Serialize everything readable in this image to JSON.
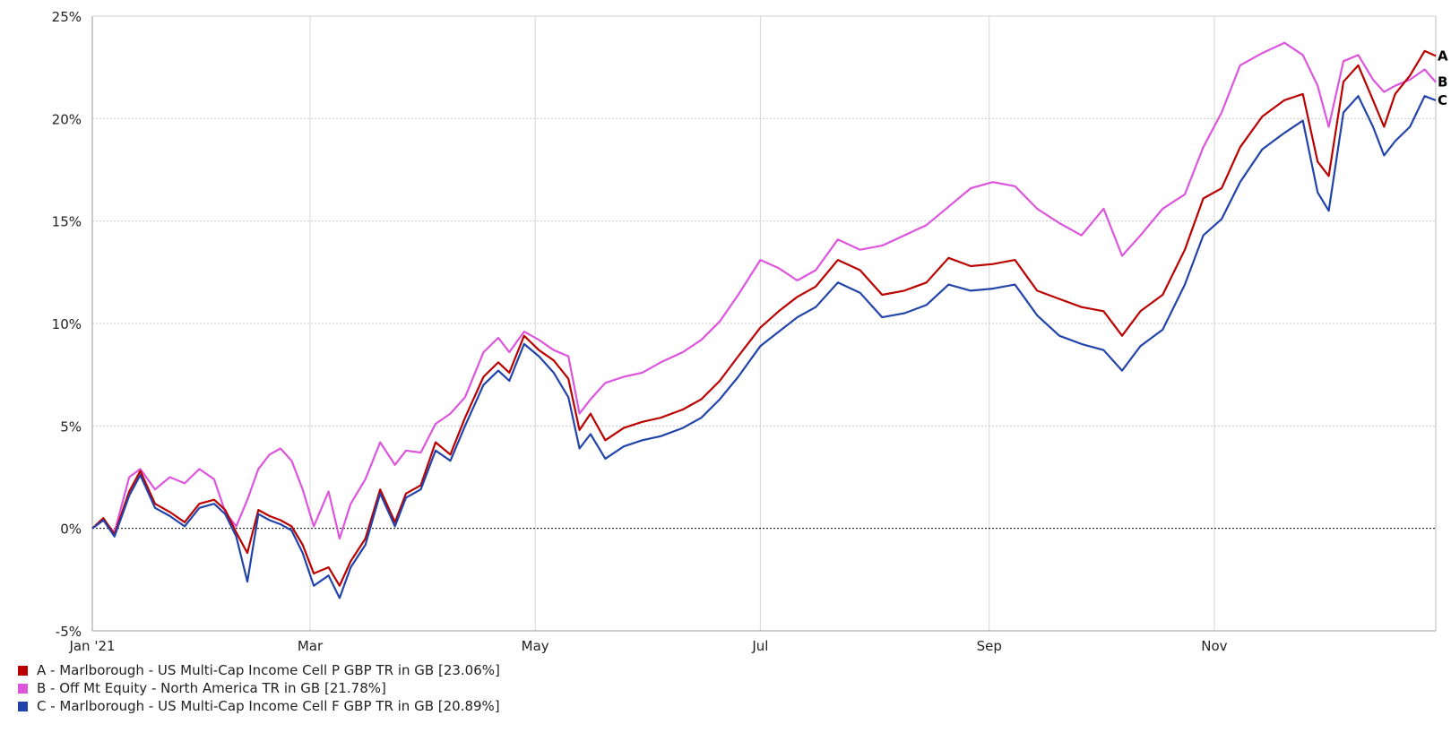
{
  "chart_data": {
    "type": "line",
    "yticks": [
      "25%",
      "20%",
      "15%",
      "10%",
      "5%",
      "0%",
      "-5%"
    ],
    "ytick_values": [
      25,
      20,
      15,
      10,
      5,
      0,
      -5
    ],
    "ylim": [
      -5,
      25
    ],
    "xlim": [
      "2021-01-01",
      "2021-12-31"
    ],
    "xticks": [
      {
        "label": "Jan '21",
        "date": "2021-01-01"
      },
      {
        "label": "Mar",
        "date": "2021-03-01"
      },
      {
        "label": "May",
        "date": "2021-05-01"
      },
      {
        "label": "Jul",
        "date": "2021-07-01"
      },
      {
        "label": "Sep",
        "date": "2021-09-01"
      },
      {
        "label": "Nov",
        "date": "2021-11-01"
      }
    ],
    "grid": true,
    "legend_position": "bottom-left",
    "series": [
      {
        "id": "A",
        "color": "#bb0000",
        "legend": "A - Marlborough - US Multi-Cap Income Cell P GBP TR in GB [23.06%]",
        "points": [
          [
            "2021-01-01",
            0
          ],
          [
            "2021-01-04",
            0.5
          ],
          [
            "2021-01-07",
            -0.3
          ],
          [
            "2021-01-11",
            1.8
          ],
          [
            "2021-01-14",
            2.8
          ],
          [
            "2021-01-18",
            1.2
          ],
          [
            "2021-01-22",
            0.8
          ],
          [
            "2021-01-26",
            0.3
          ],
          [
            "2021-01-30",
            1.2
          ],
          [
            "2021-02-03",
            1.4
          ],
          [
            "2021-02-06",
            0.9
          ],
          [
            "2021-02-09",
            -0.2
          ],
          [
            "2021-02-12",
            -1.2
          ],
          [
            "2021-02-15",
            0.9
          ],
          [
            "2021-02-18",
            0.6
          ],
          [
            "2021-02-21",
            0.4
          ],
          [
            "2021-02-24",
            0.1
          ],
          [
            "2021-02-27",
            -0.8
          ],
          [
            "2021-03-02",
            -2.2
          ],
          [
            "2021-03-06",
            -1.9
          ],
          [
            "2021-03-09",
            -2.8
          ],
          [
            "2021-03-12",
            -1.6
          ],
          [
            "2021-03-16",
            -0.5
          ],
          [
            "2021-03-20",
            1.9
          ],
          [
            "2021-03-24",
            0.3
          ],
          [
            "2021-03-27",
            1.7
          ],
          [
            "2021-03-31",
            2.1
          ],
          [
            "2021-04-04",
            4.2
          ],
          [
            "2021-04-08",
            3.6
          ],
          [
            "2021-04-12",
            5.4
          ],
          [
            "2021-04-17",
            7.4
          ],
          [
            "2021-04-21",
            8.1
          ],
          [
            "2021-04-24",
            7.6
          ],
          [
            "2021-04-28",
            9.4
          ],
          [
            "2021-05-02",
            8.7
          ],
          [
            "2021-05-06",
            8.2
          ],
          [
            "2021-05-10",
            7.3
          ],
          [
            "2021-05-13",
            4.8
          ],
          [
            "2021-05-16",
            5.6
          ],
          [
            "2021-05-20",
            4.3
          ],
          [
            "2021-05-25",
            4.9
          ],
          [
            "2021-05-30",
            5.2
          ],
          [
            "2021-06-04",
            5.4
          ],
          [
            "2021-06-10",
            5.8
          ],
          [
            "2021-06-15",
            6.3
          ],
          [
            "2021-06-20",
            7.2
          ],
          [
            "2021-06-25",
            8.4
          ],
          [
            "2021-07-01",
            9.8
          ],
          [
            "2021-07-06",
            10.6
          ],
          [
            "2021-07-11",
            11.3
          ],
          [
            "2021-07-16",
            11.8
          ],
          [
            "2021-07-22",
            13.1
          ],
          [
            "2021-07-28",
            12.6
          ],
          [
            "2021-08-03",
            11.4
          ],
          [
            "2021-08-09",
            11.6
          ],
          [
            "2021-08-15",
            12.0
          ],
          [
            "2021-08-21",
            13.2
          ],
          [
            "2021-08-27",
            12.8
          ],
          [
            "2021-09-02",
            12.9
          ],
          [
            "2021-09-08",
            13.1
          ],
          [
            "2021-09-14",
            11.6
          ],
          [
            "2021-09-20",
            11.2
          ],
          [
            "2021-09-26",
            10.8
          ],
          [
            "2021-10-02",
            10.6
          ],
          [
            "2021-10-07",
            9.4
          ],
          [
            "2021-10-12",
            10.6
          ],
          [
            "2021-10-18",
            11.4
          ],
          [
            "2021-10-24",
            13.6
          ],
          [
            "2021-10-29",
            16.1
          ],
          [
            "2021-11-03",
            16.6
          ],
          [
            "2021-11-08",
            18.6
          ],
          [
            "2021-11-14",
            20.1
          ],
          [
            "2021-11-20",
            20.9
          ],
          [
            "2021-11-25",
            21.2
          ],
          [
            "2021-11-29",
            17.9
          ],
          [
            "2021-12-02",
            17.2
          ],
          [
            "2021-12-06",
            21.8
          ],
          [
            "2021-12-10",
            22.6
          ],
          [
            "2021-12-14",
            20.9
          ],
          [
            "2021-12-17",
            19.6
          ],
          [
            "2021-12-20",
            21.2
          ],
          [
            "2021-12-24",
            22.1
          ],
          [
            "2021-12-28",
            23.3
          ],
          [
            "2021-12-31",
            23.06
          ]
        ]
      },
      {
        "id": "B",
        "color": "#dd55dd",
        "legend": "B - Off Mt Equity - North America TR in GB [21.78%]",
        "points": [
          [
            "2021-01-01",
            0
          ],
          [
            "2021-01-04",
            0.4
          ],
          [
            "2021-01-07",
            -0.2
          ],
          [
            "2021-01-11",
            2.5
          ],
          [
            "2021-01-14",
            2.9
          ],
          [
            "2021-01-18",
            1.9
          ],
          [
            "2021-01-22",
            2.5
          ],
          [
            "2021-01-26",
            2.2
          ],
          [
            "2021-01-30",
            2.9
          ],
          [
            "2021-02-03",
            2.4
          ],
          [
            "2021-02-06",
            0.8
          ],
          [
            "2021-02-09",
            0.1
          ],
          [
            "2021-02-12",
            1.4
          ],
          [
            "2021-02-15",
            2.9
          ],
          [
            "2021-02-18",
            3.6
          ],
          [
            "2021-02-21",
            3.9
          ],
          [
            "2021-02-24",
            3.3
          ],
          [
            "2021-02-27",
            1.9
          ],
          [
            "2021-03-02",
            0.1
          ],
          [
            "2021-03-06",
            1.8
          ],
          [
            "2021-03-09",
            -0.5
          ],
          [
            "2021-03-12",
            1.2
          ],
          [
            "2021-03-16",
            2.4
          ],
          [
            "2021-03-20",
            4.2
          ],
          [
            "2021-03-24",
            3.1
          ],
          [
            "2021-03-27",
            3.8
          ],
          [
            "2021-03-31",
            3.7
          ],
          [
            "2021-04-04",
            5.1
          ],
          [
            "2021-04-08",
            5.6
          ],
          [
            "2021-04-12",
            6.4
          ],
          [
            "2021-04-17",
            8.6
          ],
          [
            "2021-04-21",
            9.3
          ],
          [
            "2021-04-24",
            8.6
          ],
          [
            "2021-04-28",
            9.6
          ],
          [
            "2021-05-02",
            9.2
          ],
          [
            "2021-05-06",
            8.7
          ],
          [
            "2021-05-10",
            8.4
          ],
          [
            "2021-05-13",
            5.6
          ],
          [
            "2021-05-16",
            6.3
          ],
          [
            "2021-05-20",
            7.1
          ],
          [
            "2021-05-25",
            7.4
          ],
          [
            "2021-05-30",
            7.6
          ],
          [
            "2021-06-04",
            8.1
          ],
          [
            "2021-06-10",
            8.6
          ],
          [
            "2021-06-15",
            9.2
          ],
          [
            "2021-06-20",
            10.1
          ],
          [
            "2021-06-25",
            11.4
          ],
          [
            "2021-07-01",
            13.1
          ],
          [
            "2021-07-06",
            12.7
          ],
          [
            "2021-07-11",
            12.1
          ],
          [
            "2021-07-16",
            12.6
          ],
          [
            "2021-07-22",
            14.1
          ],
          [
            "2021-07-28",
            13.6
          ],
          [
            "2021-08-03",
            13.8
          ],
          [
            "2021-08-09",
            14.3
          ],
          [
            "2021-08-15",
            14.8
          ],
          [
            "2021-08-21",
            15.7
          ],
          [
            "2021-08-27",
            16.6
          ],
          [
            "2021-09-02",
            16.9
          ],
          [
            "2021-09-08",
            16.7
          ],
          [
            "2021-09-14",
            15.6
          ],
          [
            "2021-09-20",
            14.9
          ],
          [
            "2021-09-26",
            14.3
          ],
          [
            "2021-10-02",
            15.6
          ],
          [
            "2021-10-07",
            13.3
          ],
          [
            "2021-10-12",
            14.3
          ],
          [
            "2021-10-18",
            15.6
          ],
          [
            "2021-10-24",
            16.3
          ],
          [
            "2021-10-29",
            18.6
          ],
          [
            "2021-11-03",
            20.3
          ],
          [
            "2021-11-08",
            22.6
          ],
          [
            "2021-11-14",
            23.2
          ],
          [
            "2021-11-20",
            23.7
          ],
          [
            "2021-11-25",
            23.1
          ],
          [
            "2021-11-29",
            21.6
          ],
          [
            "2021-12-02",
            19.6
          ],
          [
            "2021-12-06",
            22.8
          ],
          [
            "2021-12-10",
            23.1
          ],
          [
            "2021-12-14",
            21.9
          ],
          [
            "2021-12-17",
            21.3
          ],
          [
            "2021-12-20",
            21.6
          ],
          [
            "2021-12-24",
            21.9
          ],
          [
            "2021-12-28",
            22.4
          ],
          [
            "2021-12-31",
            21.78
          ]
        ]
      },
      {
        "id": "C",
        "color": "#2244aa",
        "legend": "C - Marlborough - US Multi-Cap Income Cell F GBP TR in GB [20.89%]",
        "points": [
          [
            "2021-01-01",
            0
          ],
          [
            "2021-01-04",
            0.4
          ],
          [
            "2021-01-07",
            -0.4
          ],
          [
            "2021-01-11",
            1.6
          ],
          [
            "2021-01-14",
            2.6
          ],
          [
            "2021-01-18",
            1.0
          ],
          [
            "2021-01-22",
            0.6
          ],
          [
            "2021-01-26",
            0.1
          ],
          [
            "2021-01-30",
            1.0
          ],
          [
            "2021-02-03",
            1.2
          ],
          [
            "2021-02-06",
            0.7
          ],
          [
            "2021-02-09",
            -0.4
          ],
          [
            "2021-02-12",
            -2.6
          ],
          [
            "2021-02-15",
            0.7
          ],
          [
            "2021-02-18",
            0.4
          ],
          [
            "2021-02-21",
            0.2
          ],
          [
            "2021-02-24",
            -0.1
          ],
          [
            "2021-02-27",
            -1.2
          ],
          [
            "2021-03-02",
            -2.8
          ],
          [
            "2021-03-06",
            -2.3
          ],
          [
            "2021-03-09",
            -3.4
          ],
          [
            "2021-03-12",
            -1.9
          ],
          [
            "2021-03-16",
            -0.8
          ],
          [
            "2021-03-20",
            1.7
          ],
          [
            "2021-03-24",
            0.1
          ],
          [
            "2021-03-27",
            1.5
          ],
          [
            "2021-03-31",
            1.9
          ],
          [
            "2021-04-04",
            3.8
          ],
          [
            "2021-04-08",
            3.3
          ],
          [
            "2021-04-12",
            5.0
          ],
          [
            "2021-04-17",
            7.0
          ],
          [
            "2021-04-21",
            7.7
          ],
          [
            "2021-04-24",
            7.2
          ],
          [
            "2021-04-28",
            9.0
          ],
          [
            "2021-05-02",
            8.4
          ],
          [
            "2021-05-06",
            7.6
          ],
          [
            "2021-05-10",
            6.4
          ],
          [
            "2021-05-13",
            3.9
          ],
          [
            "2021-05-16",
            4.6
          ],
          [
            "2021-05-20",
            3.4
          ],
          [
            "2021-05-25",
            4.0
          ],
          [
            "2021-05-30",
            4.3
          ],
          [
            "2021-06-04",
            4.5
          ],
          [
            "2021-06-10",
            4.9
          ],
          [
            "2021-06-15",
            5.4
          ],
          [
            "2021-06-20",
            6.3
          ],
          [
            "2021-06-25",
            7.4
          ],
          [
            "2021-07-01",
            8.9
          ],
          [
            "2021-07-06",
            9.6
          ],
          [
            "2021-07-11",
            10.3
          ],
          [
            "2021-07-16",
            10.8
          ],
          [
            "2021-07-22",
            12.0
          ],
          [
            "2021-07-28",
            11.5
          ],
          [
            "2021-08-03",
            10.3
          ],
          [
            "2021-08-09",
            10.5
          ],
          [
            "2021-08-15",
            10.9
          ],
          [
            "2021-08-21",
            11.9
          ],
          [
            "2021-08-27",
            11.6
          ],
          [
            "2021-09-02",
            11.7
          ],
          [
            "2021-09-08",
            11.9
          ],
          [
            "2021-09-14",
            10.4
          ],
          [
            "2021-09-20",
            9.4
          ],
          [
            "2021-09-26",
            9.0
          ],
          [
            "2021-10-02",
            8.7
          ],
          [
            "2021-10-07",
            7.7
          ],
          [
            "2021-10-12",
            8.9
          ],
          [
            "2021-10-18",
            9.7
          ],
          [
            "2021-10-24",
            11.9
          ],
          [
            "2021-10-29",
            14.3
          ],
          [
            "2021-11-03",
            15.1
          ],
          [
            "2021-11-08",
            16.9
          ],
          [
            "2021-11-14",
            18.5
          ],
          [
            "2021-11-20",
            19.3
          ],
          [
            "2021-11-25",
            19.9
          ],
          [
            "2021-11-29",
            16.4
          ],
          [
            "2021-12-02",
            15.5
          ],
          [
            "2021-12-06",
            20.3
          ],
          [
            "2021-12-10",
            21.1
          ],
          [
            "2021-12-14",
            19.6
          ],
          [
            "2021-12-17",
            18.2
          ],
          [
            "2021-12-20",
            18.9
          ],
          [
            "2021-12-24",
            19.6
          ],
          [
            "2021-12-28",
            21.1
          ],
          [
            "2021-12-31",
            20.89
          ]
        ]
      }
    ]
  }
}
